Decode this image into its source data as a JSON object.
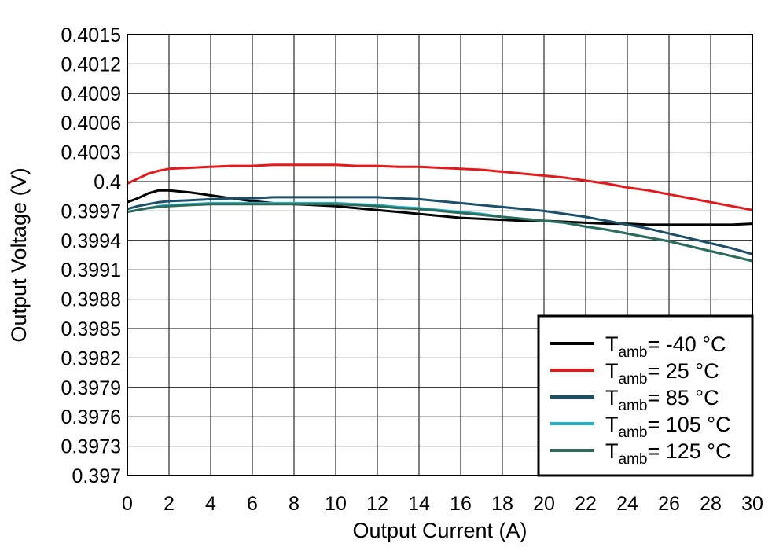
{
  "chart_data": {
    "type": "line",
    "title": "",
    "xlabel": "Output Current (A)",
    "ylabel": "Output Voltage (V)",
    "xlim": [
      0,
      30
    ],
    "ylim": [
      0.397,
      0.4015
    ],
    "xticks": [
      0,
      2,
      4,
      6,
      8,
      10,
      12,
      14,
      16,
      18,
      20,
      22,
      24,
      26,
      28,
      30
    ],
    "xtick_labels": [
      "0",
      "2",
      "4",
      "6",
      "8",
      "10",
      "12",
      "14",
      "16",
      "18",
      "20",
      "22",
      "24",
      "26",
      "28",
      "30"
    ],
    "yticks": [
      0.397,
      0.3973,
      0.3976,
      0.3979,
      0.3982,
      0.3985,
      0.3988,
      0.3991,
      0.3994,
      0.3997,
      0.4,
      0.4003,
      0.4006,
      0.4009,
      0.4012,
      0.4015
    ],
    "ytick_labels": [
      "0.397",
      "0.3973",
      "0.3976",
      "0.3979",
      "0.3982",
      "0.3985",
      "0.3988",
      "0.3991",
      "0.3994",
      "0.3997",
      "0.4",
      "0.4003",
      "0.4006",
      "0.4009",
      "0.4012",
      "0.4015"
    ],
    "grid": true,
    "legend_position": "bottom-right",
    "x": [
      0,
      0.5,
      1,
      1.5,
      2,
      3,
      4,
      5,
      6,
      7,
      8,
      9,
      10,
      11,
      12,
      13,
      14,
      15,
      16,
      17,
      18,
      19,
      20,
      21,
      22,
      23,
      24,
      25,
      26,
      27,
      28,
      29,
      30
    ],
    "series": [
      {
        "name_main": "T",
        "name_sub": "amb",
        "name_rest": "= -40 °C",
        "color": "#000000",
        "values": [
          0.39979,
          0.39983,
          0.39988,
          0.39991,
          0.39991,
          0.39989,
          0.39986,
          0.39983,
          0.3998,
          0.39978,
          0.39977,
          0.39976,
          0.39975,
          0.39973,
          0.39971,
          0.39969,
          0.39967,
          0.39965,
          0.39963,
          0.39962,
          0.39961,
          0.3996,
          0.3996,
          0.39959,
          0.39958,
          0.39957,
          0.39957,
          0.39956,
          0.39956,
          0.39956,
          0.39956,
          0.39956,
          0.39957
        ]
      },
      {
        "name_main": "T",
        "name_sub": "amb",
        "name_rest": "= 25 °C",
        "color": "#e3191c",
        "values": [
          0.39998,
          0.40003,
          0.40008,
          0.40011,
          0.40013,
          0.40014,
          0.40015,
          0.40016,
          0.40016,
          0.40017,
          0.40017,
          0.40017,
          0.40017,
          0.40016,
          0.40016,
          0.40015,
          0.40015,
          0.40014,
          0.40013,
          0.40012,
          0.4001,
          0.40008,
          0.40006,
          0.40004,
          0.40001,
          0.39998,
          0.39994,
          0.39991,
          0.39987,
          0.39983,
          0.39979,
          0.39975,
          0.39971
        ]
      },
      {
        "name_main": "T",
        "name_sub": "amb",
        "name_rest": "= 85 °C",
        "color": "#1c4f6a",
        "values": [
          0.39972,
          0.39975,
          0.39977,
          0.39979,
          0.3998,
          0.39981,
          0.39982,
          0.39983,
          0.39983,
          0.39984,
          0.39984,
          0.39984,
          0.39984,
          0.39984,
          0.39984,
          0.39983,
          0.39982,
          0.3998,
          0.39978,
          0.39976,
          0.39974,
          0.39972,
          0.3997,
          0.39967,
          0.39964,
          0.3996,
          0.39956,
          0.39952,
          0.39947,
          0.39942,
          0.39937,
          0.39932,
          0.39926
        ]
      },
      {
        "name_main": "T",
        "name_sub": "amb",
        "name_rest": "= 105 °C",
        "color": "#20b2c8",
        "values": [
          0.39969,
          0.39971,
          0.39973,
          0.39975,
          0.39976,
          0.39977,
          0.39978,
          0.39978,
          0.39978,
          0.39978,
          0.39978,
          0.39978,
          0.39978,
          0.39977,
          0.39976,
          0.39974,
          0.39973,
          0.39971,
          0.39969,
          0.39967,
          0.39964,
          0.39962,
          0.3996,
          0.39958,
          0.39954,
          0.39951,
          0.39947,
          0.39943,
          0.39939,
          0.39934,
          0.39929,
          0.39924,
          0.39919
        ]
      },
      {
        "name_main": "T",
        "name_sub": "amb",
        "name_rest": "= 125 °C",
        "color": "#2e6b5a",
        "values": [
          0.39969,
          0.39971,
          0.39973,
          0.39974,
          0.39975,
          0.39976,
          0.39977,
          0.39977,
          0.39977,
          0.39977,
          0.39977,
          0.39977,
          0.39977,
          0.39976,
          0.39975,
          0.39973,
          0.39972,
          0.3997,
          0.39968,
          0.39966,
          0.39964,
          0.39962,
          0.3996,
          0.39958,
          0.39954,
          0.39951,
          0.39947,
          0.39943,
          0.39939,
          0.39934,
          0.39929,
          0.39924,
          0.39919
        ]
      }
    ]
  }
}
